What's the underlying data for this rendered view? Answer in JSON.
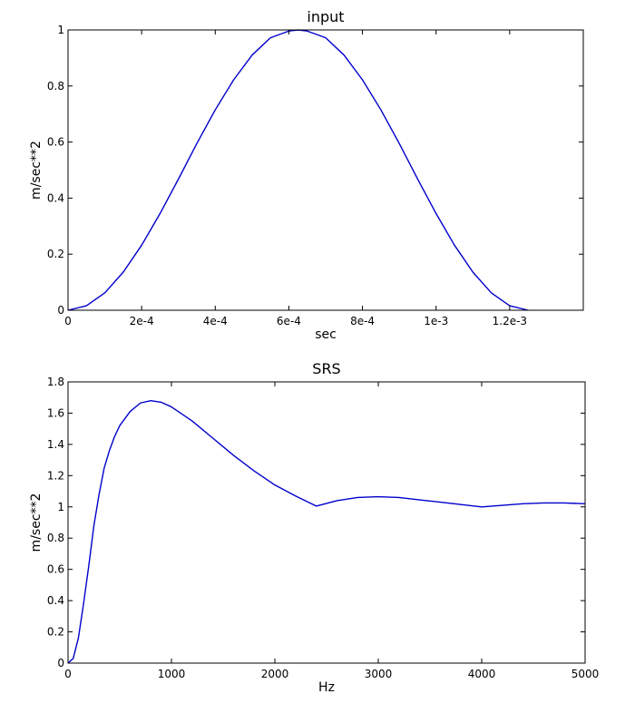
{
  "chart_data": [
    {
      "type": "line",
      "title": "input",
      "xlabel": "sec",
      "ylabel": "m/sec**2",
      "xlim": [
        0,
        0.0014
      ],
      "ylim": [
        0,
        1
      ],
      "xticks": [
        0,
        0.0002,
        0.0004,
        0.0006,
        0.0008,
        0.001,
        0.0012
      ],
      "xtick_labels": [
        "0",
        "2e-4",
        "4e-4",
        "6e-4",
        "8e-4",
        "1e-3",
        "1.2e-3"
      ],
      "yticks": [
        0,
        0.2,
        0.4,
        0.6,
        0.8,
        1
      ],
      "ytick_labels": [
        "0",
        "0.2",
        "0.4",
        "0.6",
        "0.8",
        "1"
      ],
      "line_color": "#0000cc",
      "series": [
        {
          "x": [
            0,
            5e-05,
            0.0001,
            0.00015,
            0.0002,
            0.00025,
            0.0003,
            0.00035,
            0.0004,
            0.00045,
            0.0005,
            0.00055,
            0.0006,
            0.000625,
            0.00065,
            0.0007,
            0.00075,
            0.0008,
            0.00085,
            0.0009,
            0.00095,
            0.001,
            0.00105,
            0.0011,
            0.00115,
            0.0012,
            0.00125
          ],
          "y": [
            0,
            0.016,
            0.062,
            0.136,
            0.232,
            0.345,
            0.468,
            0.595,
            0.715,
            0.822,
            0.91,
            0.972,
            0.996,
            1.0,
            0.996,
            0.972,
            0.91,
            0.822,
            0.715,
            0.595,
            0.468,
            0.345,
            0.232,
            0.136,
            0.062,
            0.016,
            0
          ]
        }
      ]
    },
    {
      "type": "line",
      "title": "SRS",
      "xlabel": "Hz",
      "ylabel": "m/sec**2",
      "xlim": [
        0,
        5000
      ],
      "ylim": [
        0,
        1.8
      ],
      "xticks": [
        0,
        1000,
        2000,
        3000,
        4000,
        5000
      ],
      "xtick_labels": [
        "0",
        "1000",
        "2000",
        "3000",
        "4000",
        "5000"
      ],
      "yticks": [
        0,
        0.2,
        0.4,
        0.6,
        0.8,
        1,
        1.2,
        1.4,
        1.6,
        1.8
      ],
      "ytick_labels": [
        "0",
        "0.2",
        "0.4",
        "0.6",
        "0.8",
        "1",
        "1.2",
        "1.4",
        "1.6",
        "1.8"
      ],
      "line_color": "#0000cc",
      "series": [
        {
          "x": [
            0,
            50,
            100,
            150,
            200,
            250,
            300,
            350,
            400,
            450,
            500,
            600,
            700,
            800,
            900,
            1000,
            1200,
            1400,
            1600,
            1800,
            2000,
            2200,
            2400,
            2600,
            2800,
            3000,
            3200,
            3400,
            3600,
            3800,
            4000,
            4200,
            4400,
            4600,
            4800,
            5000
          ],
          "y": [
            0,
            0.03,
            0.16,
            0.38,
            0.62,
            0.88,
            1.08,
            1.25,
            1.36,
            1.45,
            1.52,
            1.61,
            1.665,
            1.68,
            1.67,
            1.64,
            1.55,
            1.44,
            1.33,
            1.23,
            1.14,
            1.07,
            1.005,
            1.04,
            1.06,
            1.065,
            1.06,
            1.045,
            1.03,
            1.015,
            1.0,
            1.01,
            1.02,
            1.025,
            1.025,
            1.02
          ]
        }
      ]
    }
  ]
}
